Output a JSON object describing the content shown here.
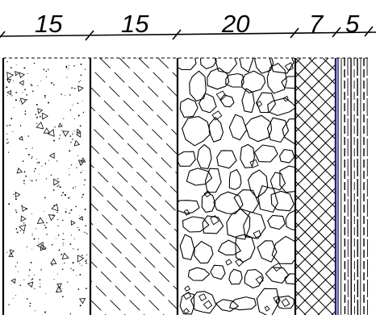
{
  "drawing": {
    "dimensions": [
      {
        "label": "15",
        "thickness": 15
      },
      {
        "label": "15",
        "thickness": 15
      },
      {
        "label": "20",
        "thickness": 20
      },
      {
        "label": "7",
        "thickness": 7
      },
      {
        "label": "5",
        "thickness": 5
      }
    ],
    "layers": [
      {
        "material": "concrete",
        "pattern": "dots-and-triangles"
      },
      {
        "material": "insulation",
        "pattern": "dashed-diagonal-hatch"
      },
      {
        "material": "rubble-stone",
        "pattern": "irregular-stones"
      },
      {
        "material": "crosshatch",
        "pattern": "cross-hatch"
      },
      {
        "material": "wood",
        "pattern": "vertical-grain"
      }
    ],
    "colors": {
      "line": "#000000",
      "membrane": "#1a1aa0",
      "background": "#ffffff"
    }
  }
}
